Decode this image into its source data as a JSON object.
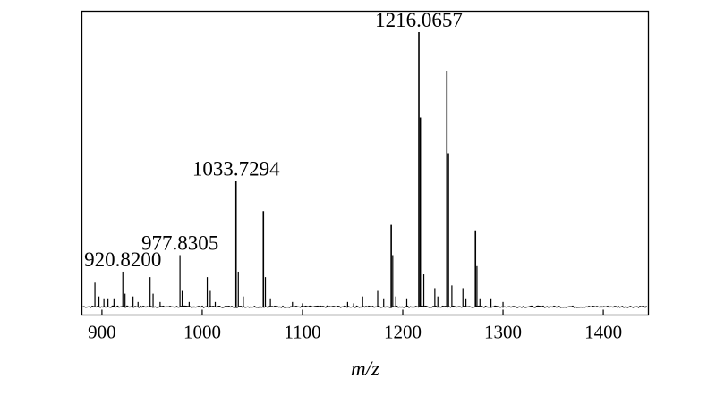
{
  "chart_data": {
    "type": "line",
    "title": "",
    "xlabel": "m/z",
    "ylabel": "",
    "xlim": [
      880,
      1445
    ],
    "ylim": [
      0,
      100
    ],
    "x_ticks": [
      "900",
      "1000",
      "1100",
      "1200",
      "1300",
      "1400"
    ],
    "grid": false,
    "legend": "none",
    "line_color": "#000000",
    "annotations": [
      {
        "text": "920.8200",
        "x": 920.82
      },
      {
        "text": "977.8305",
        "x": 977.83
      },
      {
        "text": "1033.7294",
        "x": 1033.73
      },
      {
        "text": "1216.0657",
        "x": 1216.07
      }
    ],
    "peaks": [
      {
        "x": 893,
        "y": 9
      },
      {
        "x": 897,
        "y": 4
      },
      {
        "x": 902,
        "y": 3
      },
      {
        "x": 906,
        "y": 3
      },
      {
        "x": 912,
        "y": 3
      },
      {
        "x": 920.82,
        "y": 13
      },
      {
        "x": 923,
        "y": 5
      },
      {
        "x": 931,
        "y": 4
      },
      {
        "x": 936,
        "y": 2
      },
      {
        "x": 948,
        "y": 11
      },
      {
        "x": 951,
        "y": 5
      },
      {
        "x": 958,
        "y": 2
      },
      {
        "x": 977.83,
        "y": 19
      },
      {
        "x": 980,
        "y": 6
      },
      {
        "x": 987,
        "y": 2
      },
      {
        "x": 1005,
        "y": 11
      },
      {
        "x": 1008,
        "y": 6
      },
      {
        "x": 1013,
        "y": 2
      },
      {
        "x": 1033.73,
        "y": 46
      },
      {
        "x": 1036,
        "y": 13
      },
      {
        "x": 1041,
        "y": 4
      },
      {
        "x": 1061,
        "y": 35
      },
      {
        "x": 1063,
        "y": 11
      },
      {
        "x": 1068,
        "y": 3
      },
      {
        "x": 1090,
        "y": 2
      },
      {
        "x": 1100,
        "y": 1.5
      },
      {
        "x": 1145,
        "y": 2
      },
      {
        "x": 1151,
        "y": 1.5
      },
      {
        "x": 1160,
        "y": 4
      },
      {
        "x": 1175,
        "y": 6
      },
      {
        "x": 1181,
        "y": 3
      },
      {
        "x": 1188.5,
        "y": 30
      },
      {
        "x": 1190,
        "y": 19
      },
      {
        "x": 1193,
        "y": 4
      },
      {
        "x": 1204,
        "y": 3
      },
      {
        "x": 1216.07,
        "y": 100
      },
      {
        "x": 1217.5,
        "y": 69
      },
      {
        "x": 1221,
        "y": 12
      },
      {
        "x": 1232,
        "y": 7
      },
      {
        "x": 1235,
        "y": 4
      },
      {
        "x": 1244,
        "y": 86
      },
      {
        "x": 1245.5,
        "y": 56
      },
      {
        "x": 1249,
        "y": 8
      },
      {
        "x": 1260,
        "y": 7
      },
      {
        "x": 1263,
        "y": 3
      },
      {
        "x": 1272.5,
        "y": 28
      },
      {
        "x": 1274,
        "y": 15
      },
      {
        "x": 1277,
        "y": 3
      },
      {
        "x": 1288,
        "y": 3
      },
      {
        "x": 1300,
        "y": 2
      }
    ]
  }
}
